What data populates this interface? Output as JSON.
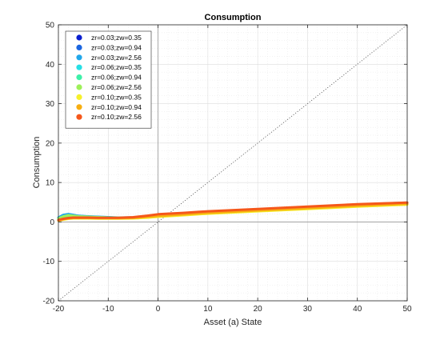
{
  "chart_data": {
    "type": "line",
    "title": "Consumption",
    "xlabel": "Asset (a) State",
    "ylabel": "Consumption",
    "xlim": [
      -20,
      50
    ],
    "ylim": [
      -20,
      50
    ],
    "xticks": [
      -20,
      -10,
      0,
      10,
      20,
      30,
      40,
      50
    ],
    "yticks": [
      -20,
      -10,
      0,
      10,
      20,
      30,
      40,
      50
    ],
    "xtick_labels": [
      "-20",
      "-10",
      "0",
      "10",
      "20",
      "30",
      "40",
      "50"
    ],
    "ytick_labels": [
      "-20",
      "-10",
      "0",
      "10",
      "20",
      "30",
      "40",
      "50"
    ],
    "grid": true,
    "minor_grid": true,
    "legend_position": "top-left",
    "reference_lines": [
      {
        "style": "dotted",
        "color": "#555555",
        "points": [
          [
            -20,
            -20
          ],
          [
            50,
            50
          ]
        ]
      },
      {
        "style": "solid",
        "color": "#9a9a9a",
        "points": [
          [
            -20,
            0
          ],
          [
            50,
            0
          ]
        ]
      },
      {
        "style": "solid",
        "color": "#9a9a9a",
        "points": [
          [
            0,
            -20
          ],
          [
            0,
            50
          ]
        ]
      }
    ],
    "series": [
      {
        "name": "zr=0.03;zw=0.35",
        "color": "#0a1fd0",
        "x": [
          -20,
          -19,
          -18,
          -17,
          -16,
          -14,
          -12,
          -10,
          -8,
          -5,
          -2,
          0,
          5,
          10,
          20,
          30,
          40,
          50
        ],
        "y": [
          0.9,
          1.6,
          1.8,
          1.6,
          1.4,
          1.3,
          1.2,
          1.1,
          1.0,
          1.05,
          1.4,
          1.75,
          2.1,
          2.5,
          3.1,
          3.7,
          4.3,
          4.8
        ]
      },
      {
        "name": "zr=0.03;zw=0.94",
        "color": "#1c66e0",
        "x": [
          -20,
          -19,
          -18,
          -17,
          -16,
          -14,
          -12,
          -10,
          -8,
          -5,
          -2,
          0,
          5,
          10,
          20,
          30,
          40,
          50
        ],
        "y": [
          1.0,
          1.7,
          1.9,
          1.7,
          1.5,
          1.35,
          1.25,
          1.15,
          1.05,
          1.1,
          1.45,
          1.8,
          2.15,
          2.55,
          3.15,
          3.75,
          4.35,
          4.85
        ]
      },
      {
        "name": "zr=0.03;zw=2.56",
        "color": "#21a7ea",
        "x": [
          -20,
          -19,
          -18,
          -17,
          -16,
          -14,
          -12,
          -10,
          -8,
          -5,
          -2,
          0,
          5,
          10,
          20,
          30,
          40,
          50
        ],
        "y": [
          1.1,
          1.8,
          2.0,
          1.8,
          1.55,
          1.4,
          1.3,
          1.2,
          1.1,
          1.15,
          1.5,
          1.85,
          2.2,
          2.6,
          3.2,
          3.8,
          4.4,
          4.9
        ]
      },
      {
        "name": "zr=0.06;zw=0.35",
        "color": "#27dfe5",
        "x": [
          -20,
          -19,
          -18,
          -17,
          -16,
          -14,
          -12,
          -10,
          -8,
          -5,
          -2,
          0,
          5,
          10,
          20,
          30,
          40,
          50
        ],
        "y": [
          0.7,
          1.2,
          1.5,
          1.4,
          1.3,
          1.2,
          1.1,
          1.05,
          1.0,
          1.0,
          1.3,
          1.65,
          2.0,
          2.4,
          3.0,
          3.6,
          4.2,
          4.7
        ]
      },
      {
        "name": "zr=0.06;zw=0.94",
        "color": "#3df0a8",
        "x": [
          -20,
          -19,
          -18,
          -17,
          -16,
          -14,
          -12,
          -10,
          -8,
          -5,
          -2,
          0,
          5,
          10,
          20,
          30,
          40,
          50
        ],
        "y": [
          0.8,
          1.3,
          1.6,
          1.5,
          1.35,
          1.25,
          1.15,
          1.1,
          1.0,
          1.05,
          1.35,
          1.7,
          2.05,
          2.45,
          3.05,
          3.65,
          4.25,
          4.75
        ]
      },
      {
        "name": "zr=0.06;zw=2.56",
        "color": "#9ef059",
        "x": [
          -20,
          -19,
          -18,
          -17,
          -16,
          -14,
          -12,
          -10,
          -8,
          -5,
          -2,
          0,
          5,
          10,
          20,
          30,
          40,
          50
        ],
        "y": [
          0.9,
          1.4,
          1.7,
          1.55,
          1.4,
          1.3,
          1.2,
          1.1,
          1.05,
          1.1,
          1.4,
          1.75,
          2.1,
          2.5,
          3.1,
          3.7,
          4.3,
          4.8
        ]
      },
      {
        "name": "zr=0.10;zw=0.35",
        "color": "#f6f02a",
        "x": [
          -20,
          -19,
          -18,
          -17,
          -16,
          -14,
          -12,
          -10,
          -8,
          -5,
          -2,
          0,
          5,
          10,
          20,
          30,
          40,
          50
        ],
        "y": [
          0.3,
          0.6,
          0.8,
          0.9,
          0.9,
          0.9,
          0.85,
          0.85,
          0.85,
          0.9,
          1.1,
          1.3,
          1.7,
          2.1,
          2.7,
          3.3,
          3.9,
          4.4
        ]
      },
      {
        "name": "zr=0.10;zw=0.94",
        "color": "#f7ae10",
        "x": [
          -20,
          -19,
          -18,
          -17,
          -16,
          -14,
          -12,
          -10,
          -8,
          -5,
          -2,
          0,
          5,
          10,
          20,
          30,
          40,
          50
        ],
        "y": [
          0.4,
          0.7,
          0.9,
          1.0,
          1.0,
          1.0,
          0.95,
          0.95,
          0.95,
          1.0,
          1.3,
          1.5,
          1.9,
          2.3,
          2.9,
          3.5,
          4.1,
          4.6
        ]
      },
      {
        "name": "zr=0.10;zw=2.56",
        "color": "#f5571a",
        "x": [
          -20,
          -19,
          -18,
          -17,
          -16,
          -14,
          -12,
          -10,
          -8,
          -5,
          -2,
          0,
          5,
          10,
          20,
          30,
          40,
          50
        ],
        "y": [
          0.5,
          0.8,
          1.0,
          1.1,
          1.1,
          1.1,
          1.05,
          1.05,
          1.05,
          1.2,
          1.6,
          1.95,
          2.3,
          2.7,
          3.3,
          3.9,
          4.5,
          4.9
        ]
      }
    ]
  }
}
